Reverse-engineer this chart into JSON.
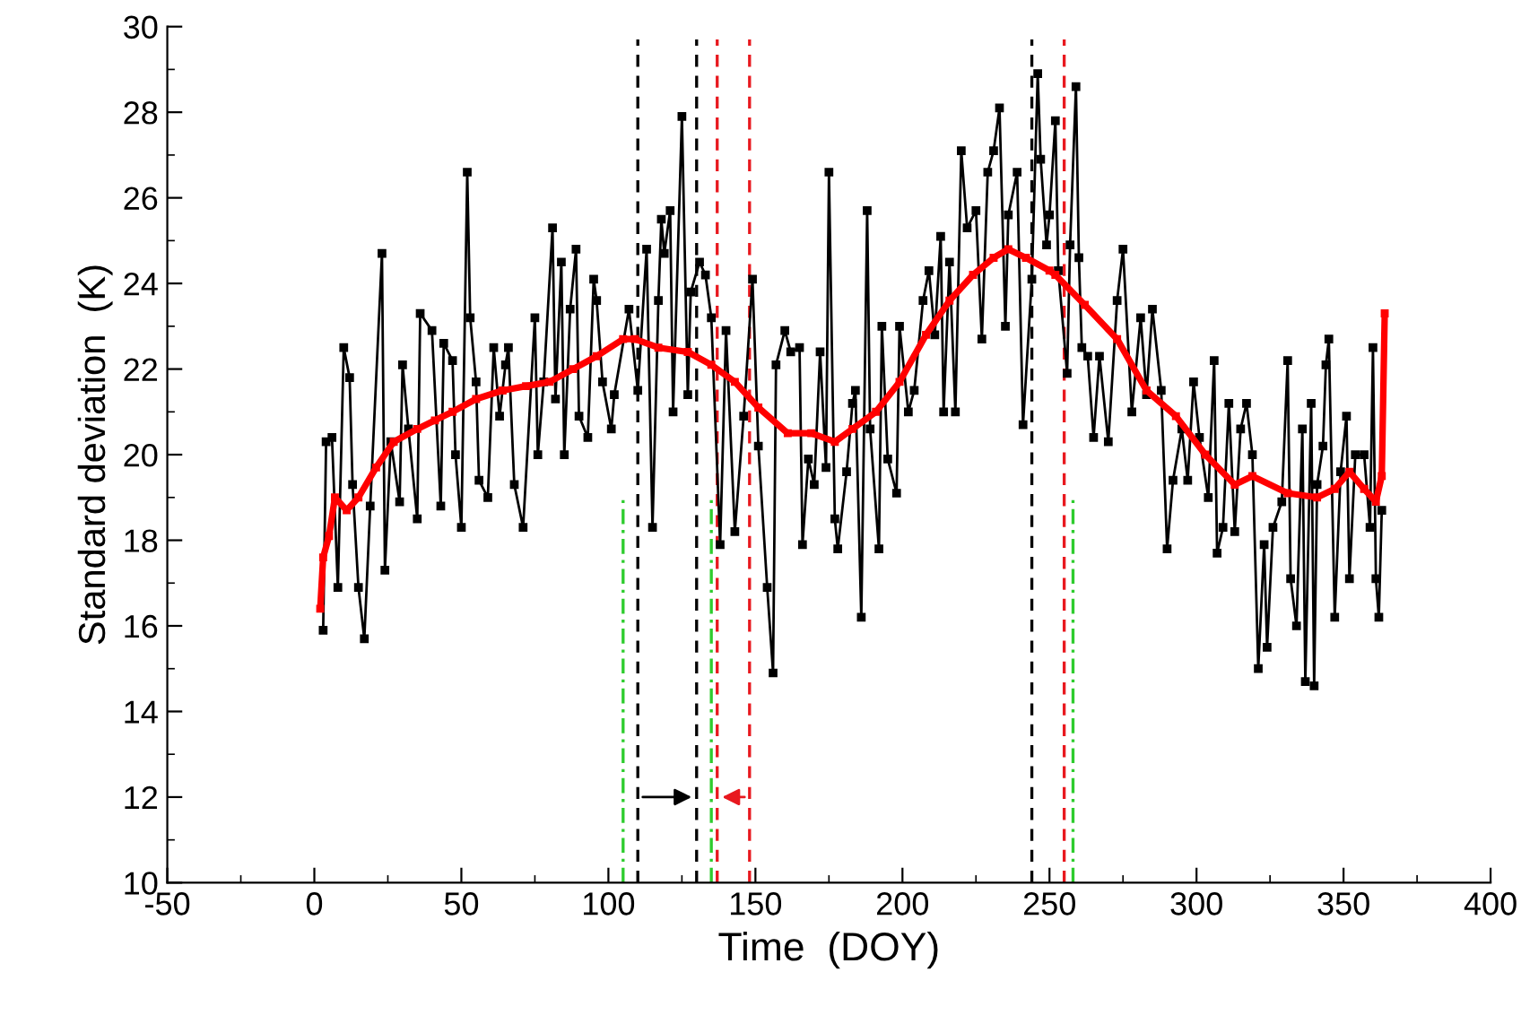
{
  "chart_data": {
    "type": "line",
    "xlabel": "Time  (DOY)",
    "ylabel": "Standard deviation  (K)",
    "xlim": [
      -50,
      400
    ],
    "xticks": [
      -50,
      0,
      50,
      100,
      150,
      200,
      250,
      300,
      350,
      400
    ],
    "ylim": [
      10,
      30
    ],
    "yticks": [
      10,
      12,
      14,
      16,
      18,
      20,
      22,
      24,
      26,
      28,
      30
    ],
    "grid": false,
    "legend": false,
    "marker": "square",
    "series": [
      {
        "color": "#000000",
        "x": [
          3,
          4,
          6,
          8,
          10,
          12,
          13,
          15,
          17,
          19,
          23,
          24,
          26,
          29,
          30,
          32,
          35,
          36,
          40,
          43,
          44,
          47,
          48,
          50,
          52,
          53,
          55,
          56,
          59,
          61,
          63,
          65,
          66,
          68,
          71,
          75,
          76,
          78,
          81,
          82,
          84,
          85,
          87,
          89,
          90,
          93,
          95,
          96,
          98,
          101,
          102,
          107,
          110,
          113,
          115,
          117,
          118,
          119,
          121,
          122,
          125,
          127,
          128,
          131,
          133,
          135,
          138,
          140,
          143,
          146,
          149,
          151,
          154,
          156,
          157,
          160,
          162,
          165,
          166,
          168,
          170,
          172,
          174,
          175,
          177,
          178,
          181,
          183,
          184,
          186,
          188,
          189,
          192,
          193,
          195,
          198,
          199,
          202,
          204,
          207,
          209,
          211,
          213,
          214,
          216,
          218,
          220,
          222,
          225,
          227,
          229,
          231,
          233,
          235,
          236,
          239,
          241,
          244,
          246,
          247,
          249,
          250,
          252,
          253,
          256,
          257,
          259,
          260,
          261,
          263,
          265,
          267,
          270,
          273,
          275,
          278,
          281,
          283,
          285,
          288,
          290,
          292,
          295,
          297,
          299,
          301,
          304,
          306,
          307,
          309,
          311,
          313,
          315,
          317,
          319,
          321,
          323,
          324,
          326,
          329,
          331,
          332,
          334,
          336,
          337,
          339,
          340,
          341,
          343,
          344,
          345,
          347,
          349,
          351,
          352,
          354,
          357,
          359,
          360,
          361,
          362,
          363
        ],
        "values": [
          15.9,
          20.3,
          20.4,
          16.9,
          22.5,
          21.8,
          19.3,
          16.9,
          15.7,
          18.8,
          24.7,
          17.3,
          20.3,
          18.9,
          22.1,
          20.6,
          18.5,
          23.3,
          22.9,
          18.8,
          22.6,
          22.2,
          20.0,
          18.3,
          26.6,
          23.2,
          21.7,
          19.4,
          19.0,
          22.5,
          20.9,
          22.1,
          22.5,
          19.3,
          18.3,
          23.2,
          20.0,
          21.7,
          25.3,
          21.3,
          24.5,
          20.0,
          23.4,
          24.8,
          20.9,
          20.4,
          24.1,
          23.6,
          21.7,
          20.6,
          21.4,
          23.4,
          21.5,
          24.8,
          18.3,
          23.6,
          25.5,
          24.7,
          25.7,
          21.0,
          27.9,
          21.4,
          23.8,
          24.5,
          24.2,
          23.2,
          17.9,
          22.9,
          18.2,
          20.9,
          24.1,
          20.2,
          16.9,
          14.9,
          22.1,
          22.9,
          22.4,
          22.5,
          17.9,
          19.9,
          19.3,
          22.4,
          19.7,
          26.6,
          18.5,
          17.8,
          19.6,
          21.2,
          21.5,
          16.2,
          25.7,
          20.6,
          17.8,
          23.0,
          19.9,
          19.1,
          23.0,
          21.0,
          21.5,
          23.6,
          24.3,
          22.8,
          25.1,
          21.0,
          24.5,
          21.0,
          27.1,
          25.3,
          25.7,
          22.7,
          26.6,
          27.1,
          28.1,
          23.0,
          25.6,
          26.6,
          20.7,
          24.1,
          28.9,
          26.9,
          24.9,
          25.6,
          27.8,
          24.3,
          21.9,
          24.9,
          28.6,
          24.6,
          22.5,
          22.3,
          20.4,
          22.3,
          20.3,
          23.6,
          24.8,
          21.0,
          23.2,
          21.4,
          23.4,
          21.5,
          17.8,
          19.4,
          20.6,
          19.4,
          21.7,
          20.4,
          19.0,
          22.2,
          17.7,
          18.3,
          21.2,
          18.2,
          20.6,
          21.2,
          20.0,
          15.0,
          17.9,
          15.5,
          18.3,
          18.9,
          22.2,
          17.1,
          16.0,
          20.6,
          14.7,
          21.2,
          14.6,
          19.3,
          20.2,
          22.1,
          22.7,
          16.2,
          19.6,
          20.9,
          17.1,
          20.0,
          20.0,
          18.3,
          22.5,
          17.1,
          16.2,
          18.7
        ]
      },
      {
        "color": "#ff0000",
        "x": [
          2,
          3,
          5,
          7,
          11,
          15,
          21,
          27,
          35,
          41,
          47,
          55,
          64,
          72,
          80,
          88,
          96,
          105,
          109,
          117,
          127,
          135,
          143,
          151,
          161,
          169,
          177,
          183,
          191,
          199,
          208,
          216,
          224,
          231,
          236,
          242,
          250,
          252,
          262,
          273,
          283,
          293,
          303,
          313,
          319,
          331,
          341,
          347,
          352,
          357,
          361,
          363,
          364
        ],
        "values": [
          16.4,
          17.6,
          18.1,
          19.0,
          18.7,
          19.0,
          19.7,
          20.3,
          20.6,
          20.8,
          21.0,
          21.3,
          21.5,
          21.6,
          21.7,
          22.0,
          22.3,
          22.7,
          22.7,
          22.5,
          22.4,
          22.1,
          21.7,
          21.1,
          20.5,
          20.5,
          20.3,
          20.6,
          21.0,
          21.7,
          22.8,
          23.6,
          24.2,
          24.6,
          24.8,
          24.6,
          24.3,
          24.2,
          23.5,
          22.7,
          21.5,
          20.9,
          20.0,
          19.3,
          19.5,
          19.1,
          19.0,
          19.2,
          19.6,
          19.2,
          18.9,
          19.5,
          23.3
        ]
      }
    ],
    "ref_lines": [
      {
        "axis": "x",
        "value": 110,
        "color": "#000000",
        "line_style": "dashed"
      },
      {
        "axis": "x",
        "value": 130,
        "color": "#000000",
        "line_style": "dashed"
      },
      {
        "axis": "x",
        "value": 244,
        "color": "#000000",
        "line_style": "dashed"
      },
      {
        "axis": "x",
        "value": 137,
        "color": "#e8191f",
        "line_style": "dashed"
      },
      {
        "axis": "x",
        "value": 148,
        "color": "#e8191f",
        "line_style": "dashed"
      },
      {
        "axis": "x",
        "value": 255,
        "color": "#e8191f",
        "line_style": "dashed"
      },
      {
        "axis": "x",
        "value": 105,
        "color": "#2ecc2e",
        "line_style": "dashdot"
      },
      {
        "axis": "x",
        "value": 135,
        "color": "#2ecc2e",
        "line_style": "dashdot"
      },
      {
        "axis": "x",
        "value": 258,
        "color": "#2ecc2e",
        "line_style": "dashdot"
      }
    ]
  }
}
